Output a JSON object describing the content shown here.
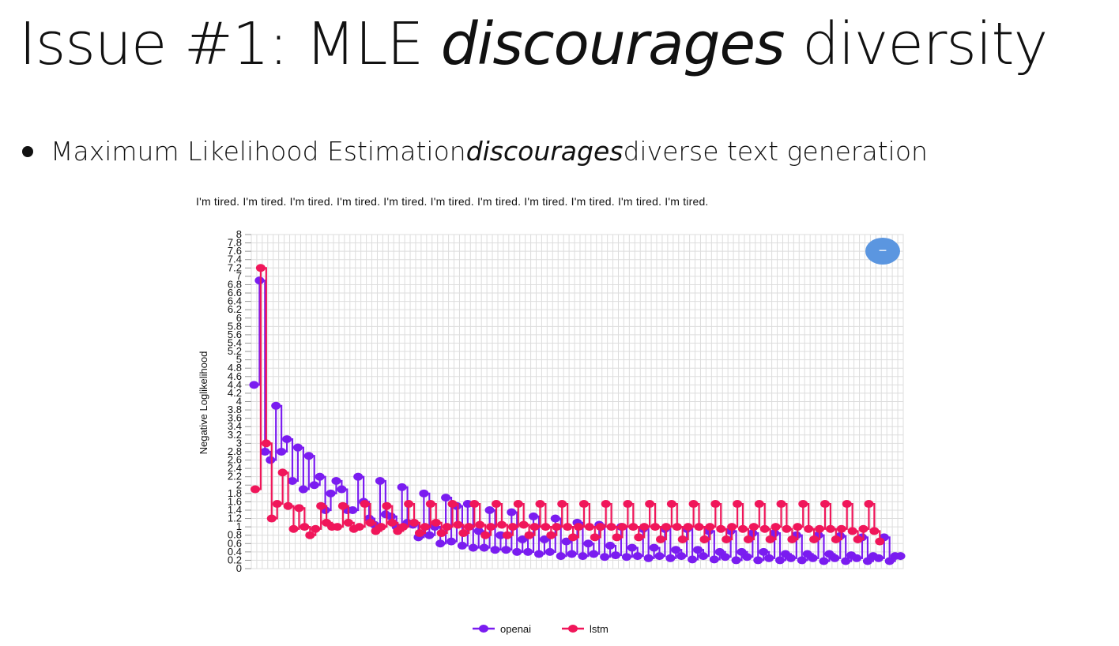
{
  "slide": {
    "title_part1": "Issue #1: MLE ",
    "title_italic": "discourages",
    "title_part2": " diversity",
    "bullet_part1": "Maximum Likelihood Estimation ",
    "bullet_italic": "discourages",
    "bullet_part2": " diverse text generation"
  },
  "zoom_button": {
    "label": "−",
    "color": "#5B96E0"
  },
  "chart_data": {
    "type": "line",
    "title": "I'm tired. I'm tired. I'm tired. I'm tired. I'm tired. I'm tired. I'm tired. I'm tired. I'm tired. I'm tired. I'm tired.",
    "ylabel": "Negative Loglikelihood",
    "xlabel": "",
    "ylim": [
      0,
      8
    ],
    "y_ticks": [
      "0",
      "0.2",
      "0.4",
      "0.6",
      "0.8",
      "1",
      "1.2",
      "1.4",
      "1.6",
      "1.8",
      "2",
      "2.2",
      "2.4",
      "2.6",
      "2.8",
      "3",
      "3.2",
      "3.4",
      "3.6",
      "3.8",
      "4",
      "4.2",
      "4.4",
      "4.6",
      "4.8",
      "5",
      "5.2",
      "5.4",
      "5.6",
      "5.8",
      "6",
      "6.2",
      "6.4",
      "6.6",
      "6.8",
      "7",
      "7.2",
      "7.4",
      "7.6",
      "7.8",
      "8"
    ],
    "grid": true,
    "legend_position": "bottom-center",
    "series": [
      {
        "name": "openai",
        "color": "#7A1CF0",
        "values": [
          4.4,
          6.9,
          2.8,
          2.6,
          3.9,
          2.8,
          3.1,
          2.1,
          2.9,
          1.9,
          2.7,
          2.0,
          2.2,
          1.4,
          1.8,
          2.1,
          1.9,
          1.4,
          1.4,
          2.2,
          1.6,
          1.2,
          1.05,
          2.1,
          1.3,
          1.25,
          1.0,
          1.95,
          1.1,
          1.05,
          0.75,
          1.8,
          0.8,
          1.0,
          0.6,
          1.7,
          0.65,
          1.5,
          0.55,
          1.55,
          0.5,
          0.9,
          0.5,
          1.4,
          0.45,
          0.8,
          0.45,
          1.35,
          0.4,
          0.7,
          0.4,
          1.25,
          0.35,
          0.7,
          0.4,
          1.2,
          0.3,
          0.65,
          0.35,
          1.1,
          0.3,
          0.6,
          0.35,
          1.05,
          0.28,
          0.55,
          0.32,
          1.0,
          0.28,
          0.5,
          0.3,
          0.95,
          0.25,
          0.5,
          0.3,
          0.95,
          0.25,
          0.45,
          0.3,
          0.95,
          0.22,
          0.45,
          0.3,
          0.9,
          0.22,
          0.4,
          0.28,
          0.9,
          0.2,
          0.4,
          0.28,
          0.85,
          0.2,
          0.4,
          0.25,
          0.85,
          0.2,
          0.35,
          0.25,
          0.8,
          0.2,
          0.35,
          0.25,
          0.8,
          0.18,
          0.35,
          0.25,
          0.78,
          0.18,
          0.32,
          0.25,
          0.75,
          0.18,
          0.3,
          0.25,
          0.75,
          0.18,
          0.3,
          0.3
        ]
      },
      {
        "name": "lstm",
        "color": "#F0165A",
        "values": [
          1.9,
          7.2,
          3.0,
          1.2,
          1.55,
          2.3,
          1.5,
          0.95,
          1.45,
          1.0,
          0.8,
          0.95,
          1.5,
          1.1,
          1.0,
          1.0,
          1.5,
          1.1,
          0.95,
          1.0,
          1.55,
          1.1,
          0.9,
          1.0,
          1.5,
          1.1,
          0.9,
          1.0,
          1.55,
          1.1,
          0.85,
          1.0,
          1.55,
          1.1,
          0.85,
          1.0,
          1.55,
          1.05,
          0.85,
          1.0,
          1.55,
          1.05,
          0.8,
          1.0,
          1.55,
          1.05,
          0.8,
          1.0,
          1.55,
          1.05,
          0.8,
          1.0,
          1.55,
          1.0,
          0.8,
          1.0,
          1.55,
          1.0,
          0.75,
          1.0,
          1.55,
          1.0,
          0.75,
          1.0,
          1.55,
          1.0,
          0.75,
          1.0,
          1.55,
          1.0,
          0.75,
          1.0,
          1.55,
          1.0,
          0.7,
          1.0,
          1.55,
          1.0,
          0.7,
          1.0,
          1.55,
          1.0,
          0.7,
          1.0,
          1.55,
          0.95,
          0.7,
          1.0,
          1.55,
          0.95,
          0.7,
          1.0,
          1.55,
          0.95,
          0.7,
          1.0,
          1.55,
          0.95,
          0.7,
          1.0,
          1.55,
          0.95,
          0.7,
          0.95,
          1.55,
          0.95,
          0.7,
          0.95,
          1.55,
          0.9,
          0.7,
          0.95,
          1.55,
          0.9,
          0.65
        ]
      }
    ]
  }
}
